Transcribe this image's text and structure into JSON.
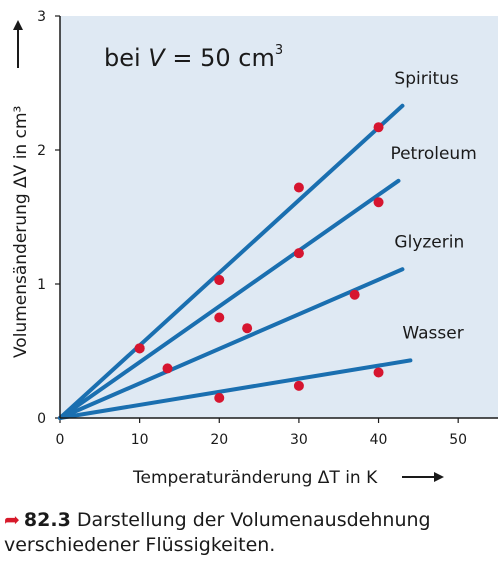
{
  "chart_data": {
    "type": "scatter",
    "annotation": {
      "prefix": "bei ",
      "var": "V",
      "eq": " = 50 cm",
      "exp": "3"
    },
    "xlabel": "Temperaturänderung ΔT  in K",
    "ylabel": "Volumensänderung ΔV  in cm³",
    "xlim": [
      0,
      55
    ],
    "ylim": [
      0,
      3
    ],
    "xticks": [
      0,
      10,
      20,
      30,
      40,
      50
    ],
    "yticks": [
      0,
      1,
      2,
      3
    ],
    "grid": false,
    "series": [
      {
        "name": "Spiritus",
        "fit_end": [
          43,
          2.33
        ],
        "points": [
          [
            10,
            0.52
          ],
          [
            20,
            1.03
          ],
          [
            30,
            1.72
          ],
          [
            40,
            2.17
          ]
        ]
      },
      {
        "name": "Petroleum",
        "fit_end": [
          42.5,
          1.77
        ],
        "points": [
          [
            10,
            0.52
          ],
          [
            20,
            1.03
          ],
          [
            30,
            1.23
          ],
          [
            40,
            1.61
          ]
        ]
      },
      {
        "name": "Glyzerin",
        "fit_end": [
          43,
          1.11
        ],
        "points": [
          [
            13.5,
            0.37
          ],
          [
            20,
            0.75
          ],
          [
            23.5,
            0.67
          ],
          [
            37,
            0.92
          ]
        ]
      },
      {
        "name": "Wasser",
        "fit_end": [
          44,
          0.43
        ],
        "points": [
          [
            20,
            0.15
          ],
          [
            30,
            0.24
          ],
          [
            40,
            0.34
          ]
        ]
      }
    ],
    "colors": {
      "line": "#1a6fb0",
      "point": "#d6152f",
      "background": "#dfe9f3"
    }
  },
  "caption": {
    "icon": "arrow-icon",
    "number": "82.3",
    "text": " Darstellung der Volumenausdehnung verschiedener Flüssigkeiten."
  }
}
